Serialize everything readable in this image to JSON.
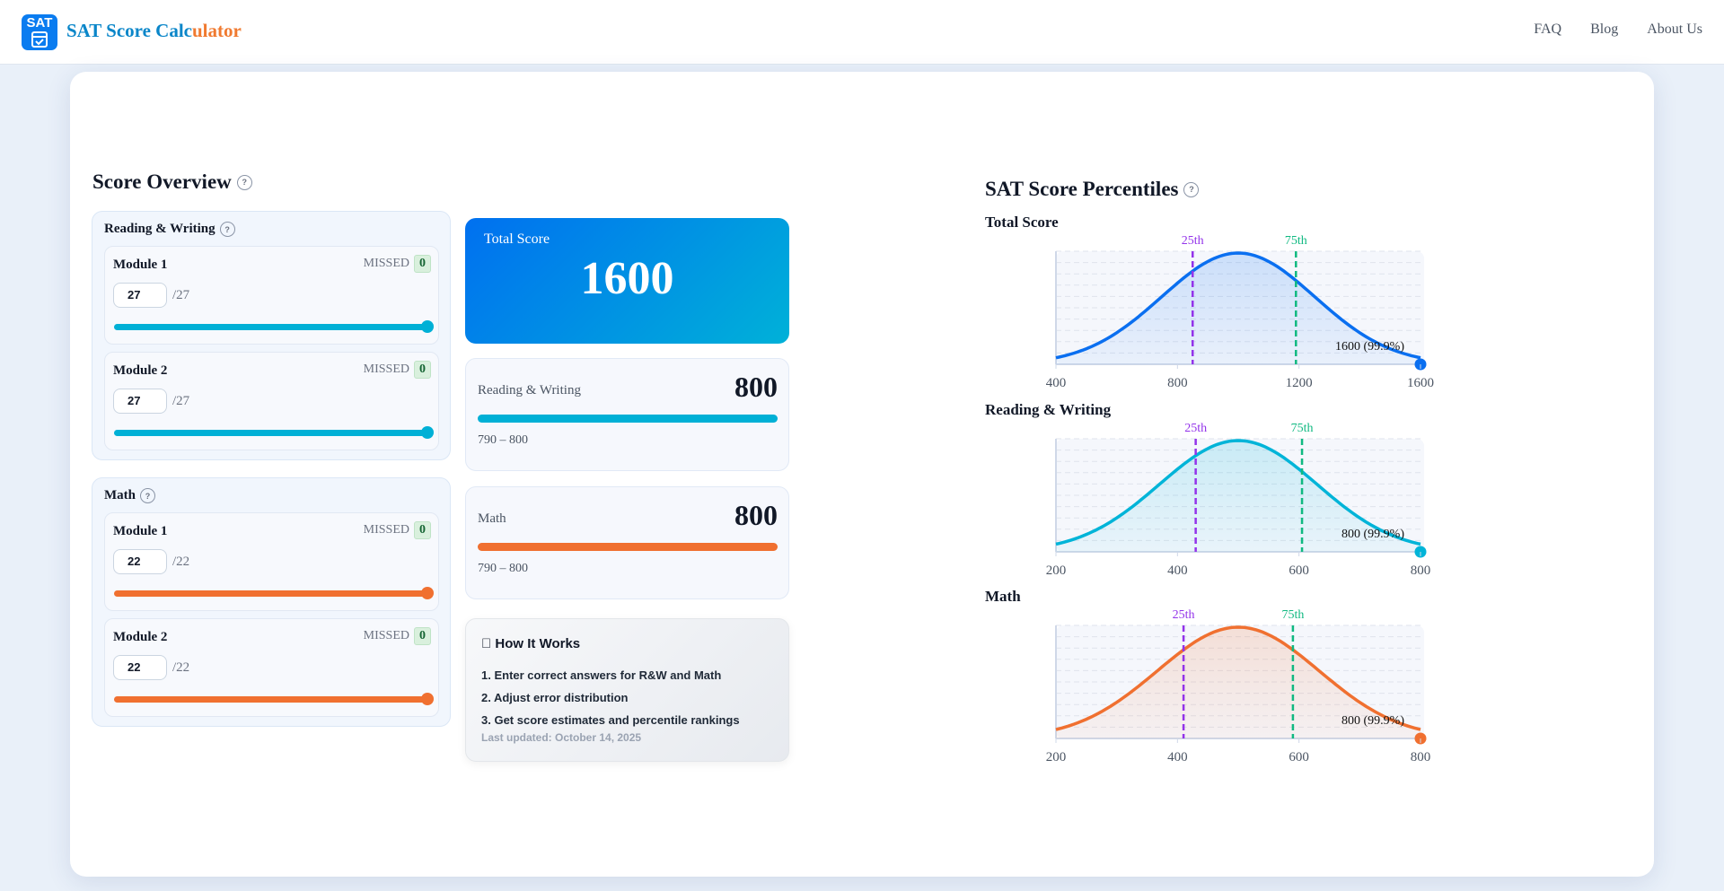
{
  "header": {
    "logo_text": "SAT",
    "title_a": "SAT Score Calc",
    "title_b": "ulator",
    "nav": [
      "FAQ",
      "Blog",
      "About Us"
    ]
  },
  "overview": {
    "title": "Score Overview",
    "sections": [
      {
        "title": "Reading & Writing",
        "color": "#00b0d6",
        "modules": [
          {
            "name": "Module 1",
            "missed_label": "MISSED",
            "missed": "0",
            "value": "27",
            "max": "/27",
            "fill": 1.0
          },
          {
            "name": "Module 2",
            "missed_label": "MISSED",
            "missed": "0",
            "value": "27",
            "max": "/27",
            "fill": 1.0
          }
        ]
      },
      {
        "title": "Math",
        "color": "#f07030",
        "modules": [
          {
            "name": "Module 1",
            "missed_label": "MISSED",
            "missed": "0",
            "value": "22",
            "max": "/22",
            "fill": 1.0
          },
          {
            "name": "Module 2",
            "missed_label": "MISSED",
            "missed": "0",
            "value": "22",
            "max": "/22",
            "fill": 1.0
          }
        ]
      }
    ]
  },
  "scores": {
    "total_label": "Total Score",
    "total": "1600",
    "rw": {
      "label": "Reading & Writing",
      "value": "800",
      "range": "790 – 800",
      "fill": 1.0,
      "color": "#00b0d6"
    },
    "math": {
      "label": "Math",
      "value": "800",
      "range": "790 – 800",
      "fill": 1.0,
      "color": "#f07030"
    }
  },
  "how": {
    "title": "\u0000 How It Works",
    "icon": "unknown-glyph",
    "steps": [
      "1. Enter correct answers for R&W and Math",
      "2. Adjust error distribution",
      "3. Get score estimates and percentile rankings"
    ],
    "updated": "Last updated: October 14, 2025"
  },
  "percentiles": {
    "title": "SAT Score Percentiles"
  },
  "chart_data": [
    {
      "type": "area",
      "title": "Total Score",
      "xlim": [
        400,
        1600
      ],
      "ticks": [
        "400",
        "800",
        "1200",
        "1600"
      ],
      "tick_values": [
        400,
        800,
        1200,
        1600
      ],
      "mean": 1000,
      "p25": 850,
      "p75": 1190,
      "p25_label": "25th",
      "p75_label": "75th",
      "score": 1600,
      "score_label": "1600 (99.9%)",
      "color": "#0a6ff0",
      "grid": true
    },
    {
      "type": "area",
      "title": "Reading & Writing",
      "xlim": [
        200,
        800
      ],
      "ticks": [
        "200",
        "400",
        "600",
        "800"
      ],
      "tick_values": [
        200,
        400,
        600,
        800
      ],
      "mean": 500,
      "p25": 430,
      "p75": 605,
      "p25_label": "25th",
      "p75_label": "75th",
      "score": 800,
      "score_label": "800 (99.9%)",
      "color": "#00b4d8",
      "grid": true
    },
    {
      "type": "area",
      "title": "Math",
      "xlim": [
        200,
        800
      ],
      "ticks": [
        "200",
        "400",
        "600",
        "800"
      ],
      "tick_values": [
        200,
        400,
        600,
        800
      ],
      "mean": 500,
      "p25": 410,
      "p75": 590,
      "p25_label": "25th",
      "p75_label": "75th",
      "score": 800,
      "score_label": "800 (99.9%)",
      "color": "#f07030",
      "grid": true
    }
  ]
}
